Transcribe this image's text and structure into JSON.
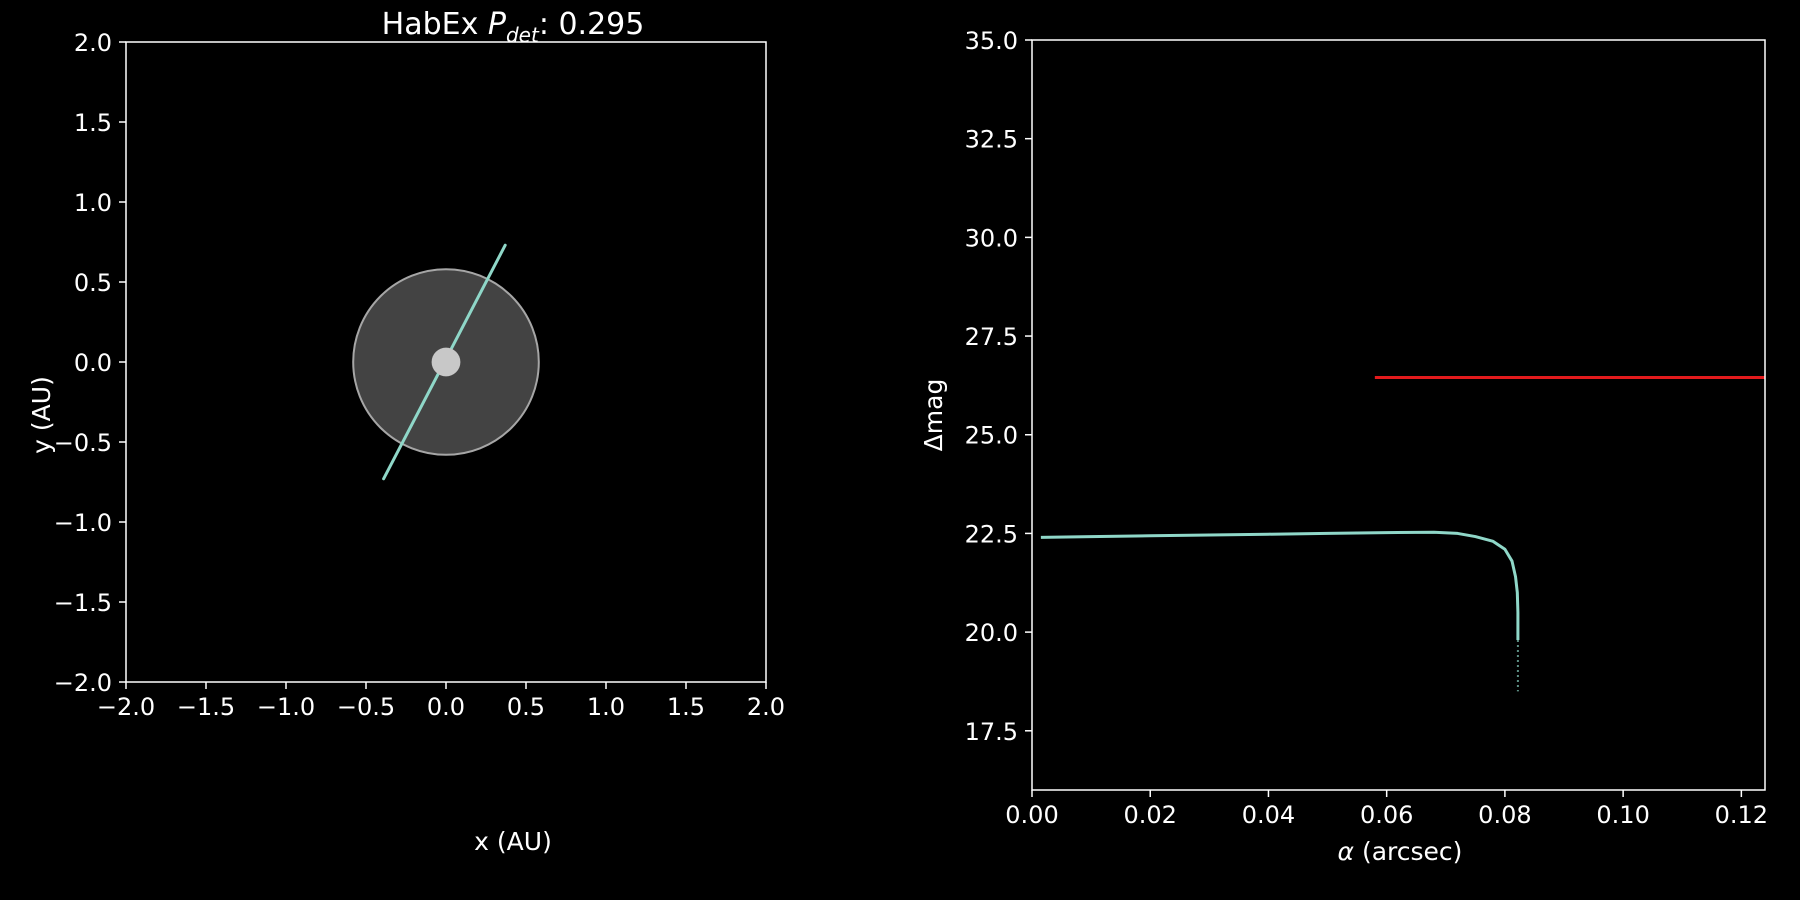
{
  "chart_data": [
    {
      "type": "line",
      "title_prefix": "HabEx ",
      "title_symbol": "P",
      "title_subscript": "det",
      "title_suffix": ": 0.295",
      "xlabel": "x (AU)",
      "ylabel": "y (AU)",
      "xlim": [
        -2.0,
        2.0
      ],
      "ylim": [
        -2.0,
        2.0
      ],
      "xticks": [
        "−2.0",
        "−1.5",
        "−1.0",
        "−0.5",
        "0.0",
        "0.5",
        "1.0",
        "1.5",
        "2.0"
      ],
      "yticks": [
        "−2.0",
        "−1.5",
        "−1.0",
        "−0.5",
        "0.0",
        "0.5",
        "1.0",
        "1.5",
        "2.0"
      ],
      "xtick_values": [
        -2.0,
        -1.5,
        -1.0,
        -0.5,
        0.0,
        0.5,
        1.0,
        1.5,
        2.0
      ],
      "ytick_values": [
        -2.0,
        -1.5,
        -1.0,
        -0.5,
        0.0,
        0.5,
        1.0,
        1.5,
        2.0
      ],
      "grid": false,
      "inner_working_angle_radius": 0.58,
      "star_radius": 0.09,
      "orbit": {
        "x": [
          -0.39,
          0.37
        ],
        "y": [
          -0.73,
          0.73
        ]
      },
      "colors": {
        "orbit": "#8fd7c8",
        "disk_fill": "#434343",
        "disk_edge": "#a6a6a6",
        "star": "#c8c8c8",
        "axes": "#ffffff",
        "background": "#000000"
      }
    },
    {
      "type": "line",
      "xlabel_symbol": "α",
      "xlabel_text": " (arcsec)",
      "ylabel": "Δmag",
      "xlim": [
        0.0,
        0.124
      ],
      "ylim": [
        16.0,
        35.0
      ],
      "xticks": [
        "0.00",
        "0.02",
        "0.04",
        "0.06",
        "0.08",
        "0.10",
        "0.12"
      ],
      "yticks": [
        "17.5",
        "20.0",
        "22.5",
        "25.0",
        "27.5",
        "30.0",
        "32.5",
        "35.0"
      ],
      "xtick_values": [
        0.0,
        0.02,
        0.04,
        0.06,
        0.08,
        0.1,
        0.12
      ],
      "ytick_values": [
        17.5,
        20.0,
        22.5,
        25.0,
        27.5,
        30.0,
        32.5,
        35.0
      ],
      "grid": false,
      "series": [
        {
          "x": [
            0.0015,
            0.01,
            0.02,
            0.03,
            0.04,
            0.05,
            0.06,
            0.068,
            0.072,
            0.075,
            0.078,
            0.08,
            0.0812,
            0.0818,
            0.0821,
            0.0822,
            0.0822
          ],
          "y": [
            22.4,
            22.42,
            22.44,
            22.46,
            22.48,
            22.5,
            22.52,
            22.53,
            22.5,
            22.42,
            22.3,
            22.1,
            21.8,
            21.4,
            21.0,
            20.5,
            19.8
          ]
        },
        {
          "x": [
            0.0822,
            0.0822
          ],
          "y": [
            19.8,
            18.5
          ]
        },
        {
          "x": [
            0.058,
            0.124
          ],
          "y": [
            26.45,
            26.45
          ]
        }
      ],
      "colors": {
        "curve": "#8fd7c8",
        "curve_tail": "#5d8f85",
        "threshold": "#e31a1c",
        "axes": "#ffffff",
        "background": "#000000"
      }
    }
  ]
}
